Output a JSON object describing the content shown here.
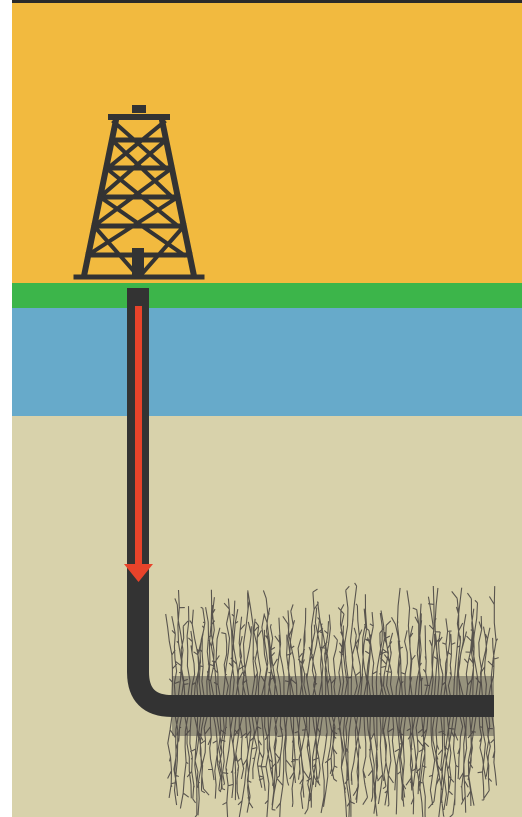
{
  "colors": {
    "sky": "#F2BA3F",
    "ground_surface": "#3CB54A",
    "aquifer": "#67AACA",
    "rock": "#D8D2AB",
    "structure": "#333333",
    "flow_arrow": "#E8432A",
    "fractures": "#4A4644",
    "top_border": "#2A2A2A"
  },
  "icons": {
    "rig": "oil-derrick-icon",
    "arrow": "arrow-down-icon",
    "fractures": "fracture-network-icon"
  }
}
